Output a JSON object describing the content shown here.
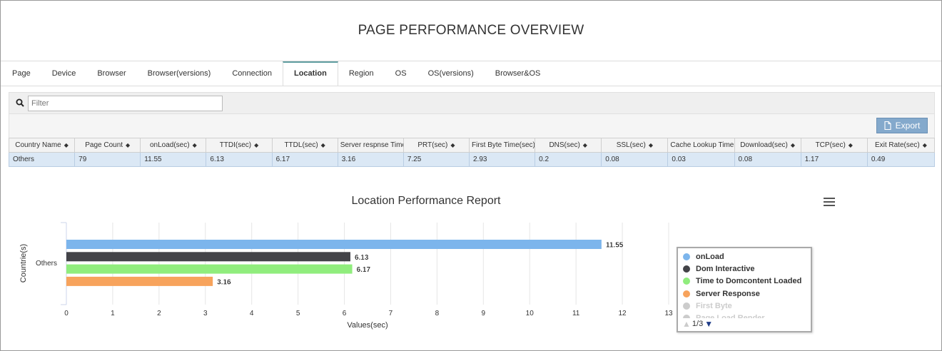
{
  "page_title": "PAGE PERFORMANCE OVERVIEW",
  "tabs": [
    {
      "label": "Page"
    },
    {
      "label": "Device"
    },
    {
      "label": "Browser"
    },
    {
      "label": "Browser(versions)"
    },
    {
      "label": "Connection"
    },
    {
      "label": "Location"
    },
    {
      "label": "Region"
    },
    {
      "label": "OS"
    },
    {
      "label": "OS(versions)"
    },
    {
      "label": "Browser&OS"
    }
  ],
  "active_tab": "Location",
  "filter": {
    "placeholder": "Filter",
    "value": ""
  },
  "export_label": "Export",
  "table": {
    "columns": [
      "Country Name",
      "Page Count",
      "onLoad(sec)",
      "TTDI(sec)",
      "TTDL(sec)",
      "Server respnse Time",
      "PRT(sec)",
      "First Byte Time(sec)",
      "DNS(sec)",
      "SSL(sec)",
      "Cache Lookup Time",
      "Download(sec)",
      "TCP(sec)",
      "Exit Rate(sec)"
    ],
    "rows": [
      [
        "Others",
        "79",
        "11.55",
        "6.13",
        "6.17",
        "3.16",
        "7.25",
        "2.93",
        "0.2",
        "0.08",
        "0.03",
        "0.08",
        "1.17",
        "0.49"
      ]
    ]
  },
  "legend_page": "1/3",
  "colors": {
    "onLoad": "#7cb5ec",
    "dom_interactive": "#434348",
    "dom_loaded": "#90ed7d",
    "server": "#f7a35c",
    "accent": "#5f9ea0"
  },
  "chart_data": {
    "type": "bar",
    "orientation": "horizontal",
    "title": "Location Performance Report",
    "xlabel": "Values(sec)",
    "ylabel": "Countrie(s)",
    "categories": [
      "Others"
    ],
    "xlim": [
      0,
      13
    ],
    "xticks": [
      "0",
      "1",
      "2",
      "3",
      "4",
      "5",
      "6",
      "7",
      "8",
      "9",
      "10",
      "11",
      "12",
      "13"
    ],
    "grid": true,
    "legend_position": "right",
    "series": [
      {
        "name": "onLoad",
        "values": [
          11.55
        ],
        "label": "11.55",
        "color": "#7cb5ec"
      },
      {
        "name": "Dom Interactive",
        "values": [
          6.13
        ],
        "label": "6.13",
        "color": "#434348"
      },
      {
        "name": "Time to Domcontent Loaded",
        "values": [
          6.17
        ],
        "label": "6.17",
        "color": "#90ed7d"
      },
      {
        "name": "Server Response",
        "values": [
          3.16
        ],
        "label": "3.16",
        "color": "#f7a35c"
      }
    ],
    "legend_items": [
      {
        "name": "onLoad",
        "color": "#7cb5ec",
        "visible": true
      },
      {
        "name": "Dom Interactive",
        "color": "#434348",
        "visible": true
      },
      {
        "name": "Time to Domcontent Loaded",
        "color": "#90ed7d",
        "visible": true
      },
      {
        "name": "Server Response",
        "color": "#f7a35c",
        "visible": true
      },
      {
        "name": "First Byte",
        "color": "#cccccc",
        "visible": false
      },
      {
        "name": "Page Load Render",
        "color": "#cccccc",
        "visible": false
      }
    ]
  }
}
